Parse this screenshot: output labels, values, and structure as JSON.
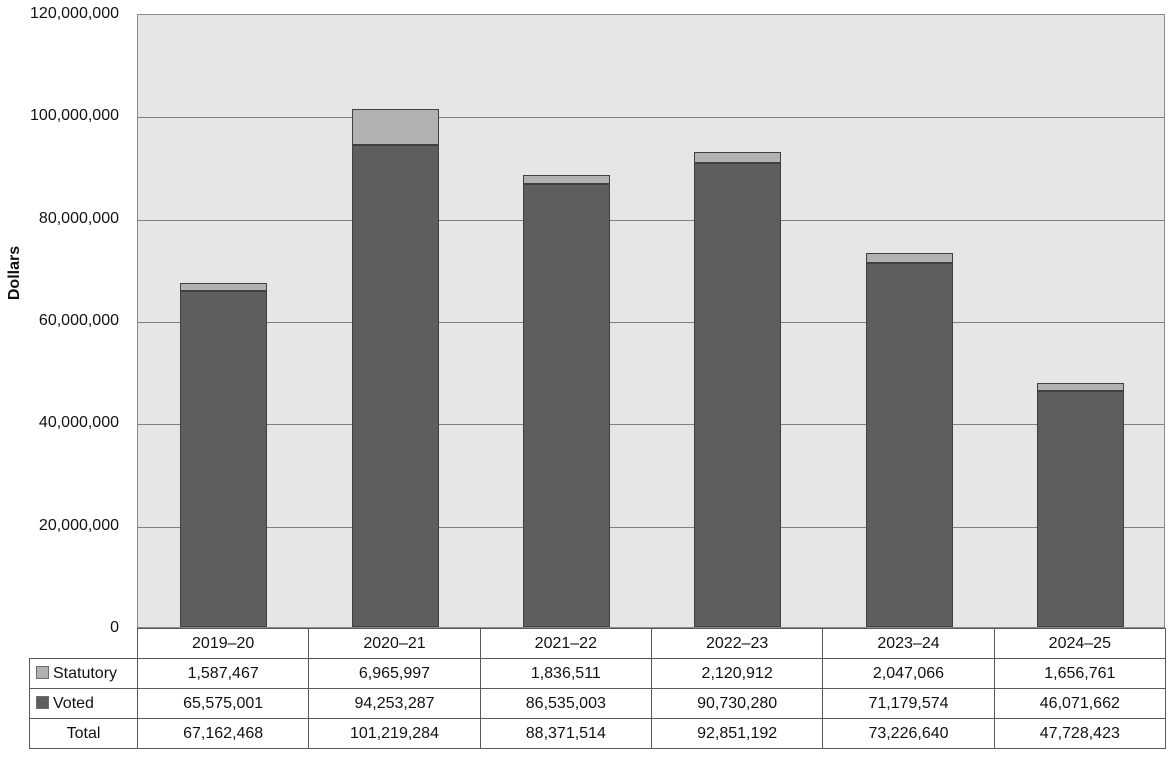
{
  "chart_data": {
    "type": "bar",
    "stacked": true,
    "title": "",
    "xlabel": "",
    "ylabel": "Dollars",
    "ylim": [
      0,
      120000000
    ],
    "ytick_step": 20000000,
    "ytick_labels": [
      "0",
      "20,000,000",
      "40,000,000",
      "60,000,000",
      "80,000,000",
      "100,000,000",
      "120,000,000"
    ],
    "grid": true,
    "legend_position": "table-rows",
    "categories": [
      "2019–20",
      "2020–21",
      "2021–22",
      "2022–23",
      "2023–24",
      "2024–25"
    ],
    "series": [
      {
        "name": "Statutory",
        "color": "#b1b1b1",
        "stack_order": "top",
        "values": [
          1587467,
          6965997,
          1836511,
          2120912,
          2047066,
          1656761
        ]
      },
      {
        "name": "Voted",
        "color": "#5e5e5e",
        "stack_order": "bottom",
        "values": [
          65575001,
          94253287,
          86535003,
          90730280,
          71179574,
          46071662
        ]
      }
    ],
    "totals": {
      "label": "Total",
      "values": [
        67162468,
        101219284,
        88371514,
        92851192,
        73226640,
        47728423
      ]
    }
  },
  "colors": {
    "plot_background": "#e6e6e6",
    "gridline": "#808080",
    "bar_border": "#404040",
    "table_border": "#595959",
    "statutory_fill": "#b1b1b1",
    "voted_fill": "#5e5e5e",
    "text": "#111111"
  }
}
